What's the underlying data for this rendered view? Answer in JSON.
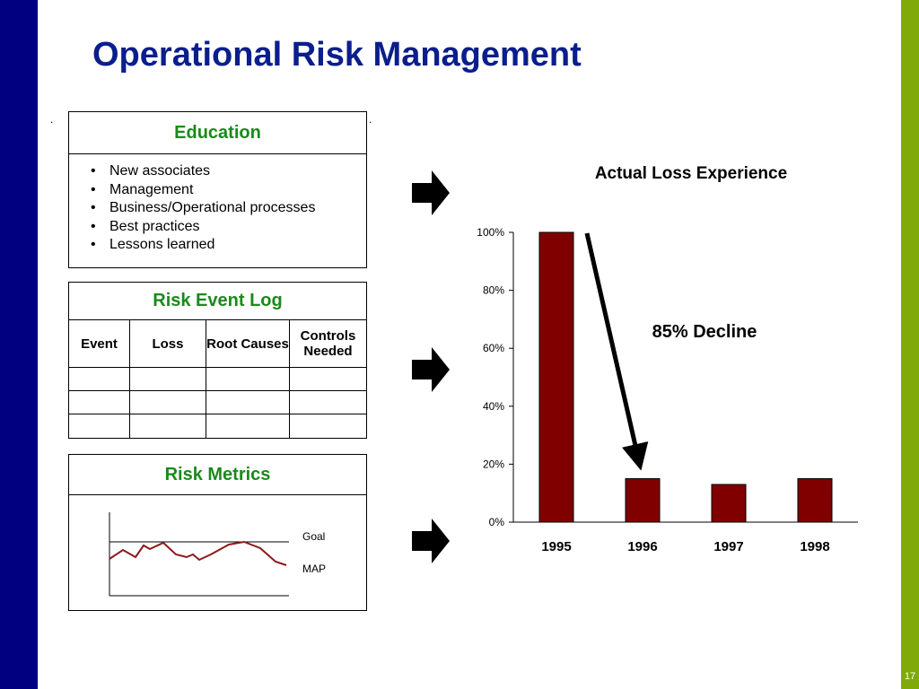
{
  "slide": {
    "title": "Operational Risk Management",
    "page_number": "17",
    "accent_dark": "#000080",
    "accent_green": "#7faa0a"
  },
  "education": {
    "heading": "Education",
    "items": [
      "New associates",
      "Management",
      "Business/Operational processes",
      "Best practices",
      "Lessons learned"
    ]
  },
  "risk_event_log": {
    "heading": "Risk Event Log",
    "columns": [
      "Event",
      "Loss",
      "Root Causes",
      "Controls Needed"
    ]
  },
  "risk_metrics": {
    "heading": "Risk Metrics",
    "legend": [
      "Goal",
      "MAP"
    ]
  },
  "annotation": {
    "decline_label": "85% Decline"
  },
  "chart_data": {
    "type": "bar",
    "title": "Actual Loss Experience",
    "categories": [
      "1995",
      "1996",
      "1997",
      "1998"
    ],
    "values": [
      100,
      15,
      13,
      15
    ],
    "y_ticks": [
      "0%",
      "20%",
      "40%",
      "60%",
      "80%",
      "100%"
    ],
    "ylim": [
      0,
      100
    ],
    "xlabel": "",
    "ylabel": "",
    "bar_color": "#800000",
    "grid": false
  }
}
